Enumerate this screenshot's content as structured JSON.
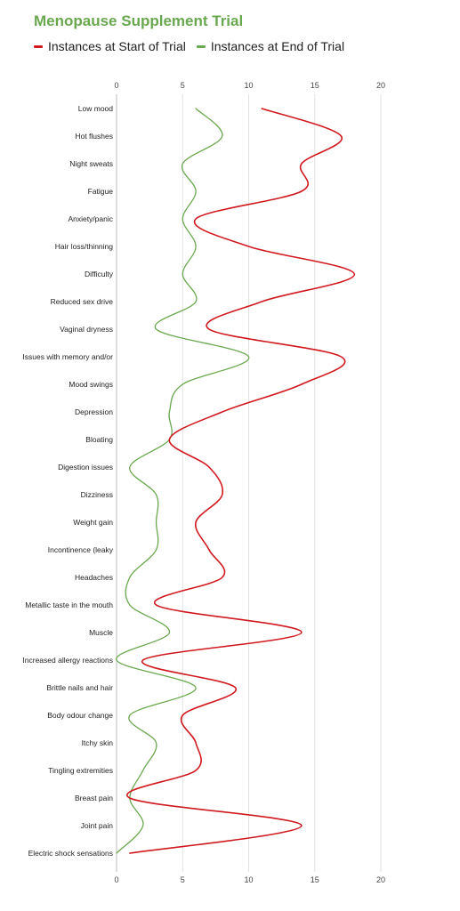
{
  "chart_data": {
    "type": "line",
    "orientation": "horizontal",
    "title": "Menopause Supplement Trial",
    "xlabel": "",
    "ylabel": "",
    "xlim": [
      0,
      20
    ],
    "xticks": [
      0,
      5,
      10,
      15,
      20
    ],
    "grid": true,
    "legend_position": "top-left",
    "categories": [
      "Low mood",
      "Hot flushes",
      "Night sweats",
      "Fatigue",
      "Anxiety/panic",
      "Hair loss/thinning",
      "Difficulty",
      "Reduced sex drive",
      "Vaginal dryness",
      "Issues with memory and/or",
      "Mood swings",
      "Depression",
      "Bloating",
      "Digestion issues",
      "Dizziness",
      "Weight gain",
      "Incontinence (leaky",
      "Headaches",
      "Metallic taste in the mouth",
      "Muscle",
      "Increased allergy reactions",
      "Brittle nails and hair",
      "Body odour change",
      "Itchy skin",
      "Tingling extremities",
      "Breast pain",
      "Joint pain",
      "Electric shock sensations"
    ],
    "series": [
      {
        "name": "Instances at Start of Trial",
        "color": "#d0191f",
        "values": [
          11,
          17,
          14,
          14,
          6,
          10,
          18,
          11,
          7,
          17,
          14,
          8,
          4,
          7,
          8,
          6,
          7,
          8,
          3,
          14,
          2,
          9,
          5,
          6,
          6,
          1,
          14,
          1
        ]
      },
      {
        "name": "Instances at End of Trial",
        "color": "#6aa84f",
        "values": [
          6,
          8,
          5,
          6,
          5,
          6,
          5,
          6,
          3,
          10,
          5,
          4,
          4,
          1,
          3,
          3,
          3,
          1,
          1,
          4,
          0,
          6,
          1,
          3,
          2,
          1,
          2,
          0
        ]
      }
    ]
  }
}
